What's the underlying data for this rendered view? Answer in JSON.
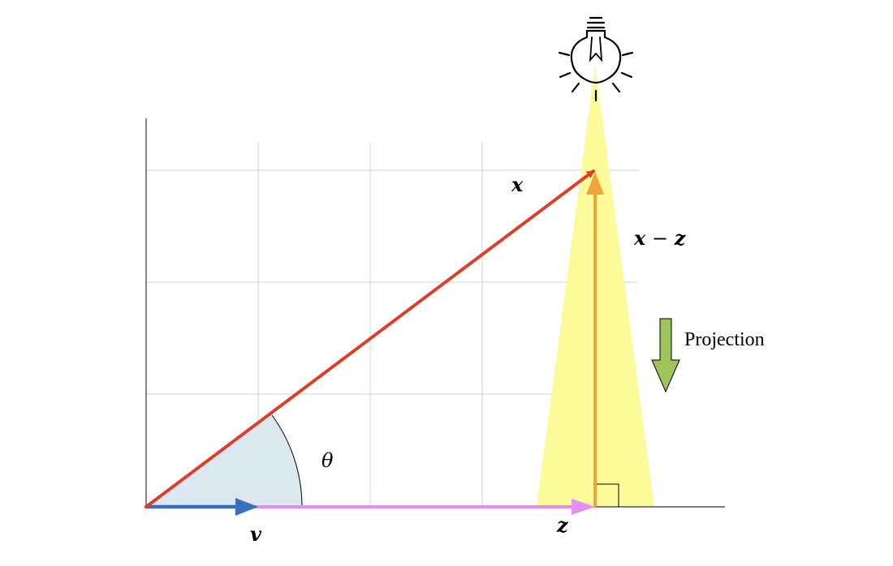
{
  "labels": {
    "x": "x",
    "x_minus_z_a": "x",
    "x_minus_z_op": " − ",
    "x_minus_z_b": "z",
    "z": "z",
    "v": "v",
    "theta": "θ",
    "projection": "Projection"
  },
  "colors": {
    "x_vector": "#d9402b",
    "v_vector": "#3a6fbf",
    "z_vector": "#e58ff0",
    "x_minus_z_vector": "#f0a43c",
    "light_beam": "#fdfa9a",
    "angle_fill": "#dce8f0",
    "projection_arrow": "#9dc35a",
    "grid": "#d0d0d0"
  },
  "icons": {
    "light": "lightbulb-icon",
    "projection": "arrow-down-icon"
  }
}
